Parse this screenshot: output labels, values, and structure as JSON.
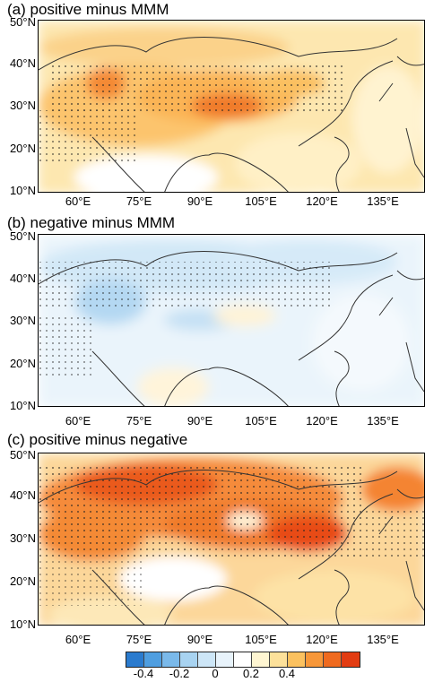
{
  "panels": [
    {
      "title": "(a) positive minus MMM",
      "pattern": "positive-mmm"
    },
    {
      "title": "(b) negative minus MMM",
      "pattern": "negative-mmm"
    },
    {
      "title": "(c) positive minus negative",
      "pattern": "positive-negative"
    }
  ],
  "lat_labels": [
    "50°N",
    "40°N",
    "30°N",
    "20°N",
    "10°N"
  ],
  "lon_labels": [
    "60°E",
    "75°E",
    "90°E",
    "105°E",
    "120°E",
    "135°E"
  ],
  "colorbar": {
    "colors": [
      "#2b7bce",
      "#4f9ee0",
      "#7ab9ea",
      "#a8d3f1",
      "#cde6f7",
      "#e8f3fb",
      "#ffffff",
      "#fff6d2",
      "#fde19a",
      "#fbc15f",
      "#f79739",
      "#ef6a1f",
      "#e23c12"
    ],
    "tick_labels": [
      "-0.4",
      "-0.2",
      "0",
      "0.2",
      "0.4"
    ]
  }
}
